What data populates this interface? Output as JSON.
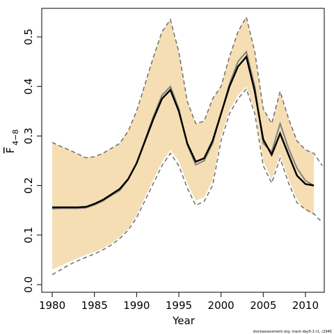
{
  "chart_data": {
    "type": "line",
    "xlabel": "Year",
    "ylabel": {
      "main": "F",
      "sub": "4−8"
    },
    "footnote": "stockassessment.org, mack-day5-1-r1, r2945",
    "xlim": [
      1978.76,
      2012.23
    ],
    "ylim": [
      -0.0154,
      0.5576
    ],
    "xticks": [
      1980,
      1985,
      1990,
      1995,
      2000,
      2005,
      2010
    ],
    "yticks": [
      {
        "value": 0,
        "label": "0.0"
      },
      {
        "value": 0.1,
        "label": "0.1"
      },
      {
        "value": 0.2,
        "label": "0.2"
      },
      {
        "value": 0.3,
        "label": "0.3"
      },
      {
        "value": 0.4,
        "label": "0.4"
      },
      {
        "value": 0.5,
        "label": "0.5"
      }
    ],
    "band": {
      "color": "#f5deb3",
      "x": [
        1980,
        1981,
        1982,
        1983,
        1984,
        1985,
        1986,
        1987,
        1988,
        1989,
        1990,
        1991,
        1992,
        1993,
        1994,
        1995,
        1996,
        1997,
        1998,
        1999,
        2000,
        2001,
        2002,
        2003,
        2004,
        2005,
        2006,
        2007,
        2008,
        2009,
        2010,
        2011
      ],
      "upper": [
        0.287,
        0.279,
        0.272,
        0.264,
        0.256,
        0.258,
        0.265,
        0.275,
        0.285,
        0.31,
        0.35,
        0.405,
        0.46,
        0.51,
        0.535,
        0.47,
        0.37,
        0.325,
        0.33,
        0.375,
        0.4,
        0.46,
        0.51,
        0.54,
        0.47,
        0.355,
        0.325,
        0.39,
        0.335,
        0.29,
        0.272,
        0.265
      ],
      "lower": [
        0.03,
        0.038,
        0.046,
        0.053,
        0.06,
        0.066,
        0.073,
        0.083,
        0.096,
        0.113,
        0.14,
        0.177,
        0.213,
        0.248,
        0.272,
        0.25,
        0.205,
        0.17,
        0.176,
        0.21,
        0.3,
        0.352,
        0.382,
        0.4,
        0.352,
        0.25,
        0.213,
        0.263,
        0.213,
        0.172,
        0.15,
        0.14
      ]
    },
    "x": [
      1980,
      1981,
      1982,
      1983,
      1984,
      1985,
      1986,
      1987,
      1988,
      1989,
      1990,
      1991,
      1992,
      1993,
      1994,
      1995,
      1996,
      1997,
      1998,
      1999,
      2000,
      2001,
      2002,
      2003,
      2004,
      2005,
      2006,
      2007,
      2008,
      2009,
      2010,
      2011,
      2012
    ],
    "series": [
      {
        "color": "#6e6e6e",
        "dashed": true,
        "width": 1.5,
        "values": [
          0.287,
          0.279,
          0.272,
          0.264,
          0.256,
          0.258,
          0.265,
          0.275,
          0.285,
          0.31,
          0.35,
          0.405,
          0.46,
          0.51,
          0.535,
          0.47,
          0.37,
          0.325,
          0.33,
          0.375,
          0.4,
          0.46,
          0.51,
          0.54,
          0.47,
          0.355,
          0.325,
          0.39,
          0.335,
          0.29,
          0.272,
          0.265,
          0.24
        ]
      },
      {
        "color": "#6e6e6e",
        "dashed": true,
        "width": 1.5,
        "values": [
          0.02,
          0.03,
          0.04,
          0.048,
          0.055,
          0.062,
          0.07,
          0.08,
          0.093,
          0.11,
          0.135,
          0.17,
          0.205,
          0.24,
          0.265,
          0.24,
          0.195,
          0.16,
          0.168,
          0.2,
          0.29,
          0.345,
          0.375,
          0.395,
          0.345,
          0.24,
          0.205,
          0.255,
          0.205,
          0.165,
          0.152,
          0.143,
          0.125
        ]
      },
      {
        "color": "#808080",
        "dashed": false,
        "width": 2,
        "values": [
          0.153,
          0.154,
          0.154,
          0.154,
          0.155,
          0.161,
          0.169,
          0.18,
          0.19,
          0.212,
          0.245,
          0.292,
          0.34,
          0.382,
          0.4,
          0.355,
          0.282,
          0.242,
          0.25,
          0.285,
          0.345,
          0.405,
          0.45,
          0.47,
          0.4,
          0.285,
          0.268,
          0.325,
          0.275,
          0.235,
          0.21,
          0.2,
          null
        ]
      },
      {
        "color": "#000000",
        "dashed": false,
        "width": 2.5,
        "values": [
          0.156,
          0.156,
          0.156,
          0.156,
          0.157,
          0.163,
          0.171,
          0.182,
          0.193,
          0.213,
          0.245,
          0.29,
          0.335,
          0.375,
          0.393,
          0.35,
          0.285,
          0.248,
          0.255,
          0.29,
          0.345,
          0.4,
          0.44,
          0.46,
          0.39,
          0.293,
          0.262,
          0.305,
          0.262,
          0.22,
          0.203,
          0.2,
          null
        ]
      }
    ]
  }
}
